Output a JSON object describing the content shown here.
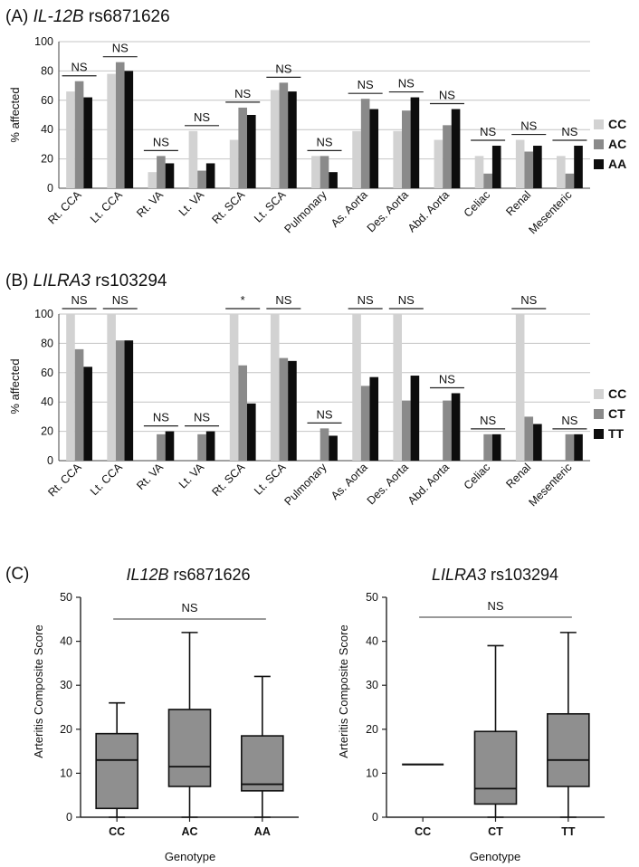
{
  "colors": {
    "g1": "#d2d2d2",
    "g2": "#8a8a8a",
    "g3": "#0d0d0d",
    "box": "#8f8f8f",
    "grid": "#c4c4c4"
  },
  "categories": [
    "Rt. CCA",
    "Lt. CCA",
    "Rt. VA",
    "Lt. VA",
    "Rt. SCA",
    "Lt. SCA",
    "Pulmonary",
    "As. Aorta",
    "Des. Aorta",
    "Abd. Aorta",
    "Celiac",
    "Renal",
    "Mesenteric"
  ],
  "panelA": {
    "label_prefix": "(A) ",
    "gene": "IL-12B",
    "snp": " rs6871626",
    "ylabel": "% affected",
    "legend": [
      "CC",
      "AC",
      "AA"
    ],
    "sig": [
      "NS",
      "NS",
      "NS",
      "NS",
      "NS",
      "NS",
      "NS",
      "NS",
      "NS",
      "NS",
      "NS",
      "NS",
      "NS"
    ]
  },
  "panelB": {
    "label_prefix": "(B) ",
    "gene": "LILRA3",
    "snp": " rs103294",
    "ylabel": "% affected",
    "legend": [
      "CC",
      "CT",
      "TT"
    ],
    "sig": [
      "NS",
      "NS",
      "NS",
      "NS",
      "*",
      "NS",
      "NS",
      "NS",
      "NS",
      "NS",
      "NS",
      "NS",
      "NS"
    ]
  },
  "panelC": {
    "label": "(C)",
    "left": {
      "gene": "IL12B",
      "snp": " rs6871626",
      "sig": "NS"
    },
    "right": {
      "gene": "LILRA3",
      "snp": " rs103294",
      "sig": "NS"
    },
    "ylabel": "Arteritis Composite Score",
    "xlabel": "Genotype"
  },
  "chart_data": [
    {
      "type": "bar",
      "title": "(A) IL-12B rs6871626",
      "ylabel": "% affected",
      "ylim": [
        0,
        100
      ],
      "yticks": [
        0,
        20,
        40,
        60,
        80,
        100
      ],
      "grid": true,
      "categories": [
        "Rt. CCA",
        "Lt. CCA",
        "Rt. VA",
        "Lt. VA",
        "Rt. SCA",
        "Lt. SCA",
        "Pulmonary",
        "As. Aorta",
        "Des. Aorta",
        "Abd. Aorta",
        "Celiac",
        "Renal",
        "Mesenteric"
      ],
      "series": [
        {
          "name": "CC",
          "values": [
            66,
            78,
            11,
            39,
            33,
            67,
            22,
            39,
            39,
            33,
            22,
            33,
            22
          ]
        },
        {
          "name": "AC",
          "values": [
            73,
            86,
            22,
            12,
            55,
            72,
            22,
            61,
            53,
            43,
            10,
            25,
            10
          ]
        },
        {
          "name": "AA",
          "values": [
            62,
            80,
            17,
            17,
            50,
            66,
            11,
            54,
            62,
            54,
            29,
            29,
            29
          ]
        }
      ],
      "legend_position": "right",
      "annotations": [
        "NS",
        "NS",
        "NS",
        "NS",
        "NS",
        "NS",
        "NS",
        "NS",
        "NS",
        "NS",
        "NS",
        "NS",
        "NS"
      ]
    },
    {
      "type": "bar",
      "title": "(B) LILRA3 rs103294",
      "ylabel": "% affected",
      "ylim": [
        0,
        100
      ],
      "yticks": [
        0,
        20,
        40,
        60,
        80,
        100
      ],
      "grid": true,
      "categories": [
        "Rt. CCA",
        "Lt. CCA",
        "Rt. VA",
        "Lt. VA",
        "Rt. SCA",
        "Lt. SCA",
        "Pulmonary",
        "As. Aorta",
        "Des. Aorta",
        "Abd. Aorta",
        "Celiac",
        "Renal",
        "Mesenteric"
      ],
      "series": [
        {
          "name": "CC",
          "values": [
            100,
            100,
            0,
            0,
            100,
            100,
            0,
            100,
            100,
            0,
            0,
            100,
            0
          ]
        },
        {
          "name": "CT",
          "values": [
            76,
            82,
            18,
            18,
            65,
            70,
            22,
            51,
            41,
            41,
            18,
            30,
            18
          ]
        },
        {
          "name": "TT",
          "values": [
            64,
            82,
            20,
            20,
            39,
            68,
            17,
            57,
            58,
            46,
            18,
            25,
            18
          ]
        }
      ],
      "legend_position": "right",
      "annotations": [
        "NS",
        "NS",
        "NS",
        "NS",
        "*",
        "NS",
        "NS",
        "NS",
        "NS",
        "NS",
        "NS",
        "NS",
        "NS"
      ]
    },
    {
      "type": "box",
      "title": "IL12B rs6871626",
      "xlabel": "Genotype",
      "ylabel": "Arteritis Composite Score",
      "ylim": [
        0,
        50
      ],
      "yticks": [
        0,
        10,
        20,
        30,
        40,
        50
      ],
      "categories": [
        "CC",
        "AC",
        "AA"
      ],
      "boxes": [
        {
          "name": "CC",
          "min": 0,
          "q1": 2,
          "median": 13,
          "q3": 19,
          "max": 26
        },
        {
          "name": "AC",
          "min": 0,
          "q1": 7,
          "median": 11.5,
          "q3": 24.5,
          "max": 42
        },
        {
          "name": "AA",
          "min": 0,
          "q1": 6,
          "median": 7.5,
          "q3": 18.5,
          "max": 32
        }
      ],
      "annotation": "NS"
    },
    {
      "type": "box",
      "title": "LILRA3 rs103294",
      "xlabel": "Genotype",
      "ylabel": "Arteritis Composite Score",
      "ylim": [
        0,
        50
      ],
      "yticks": [
        0,
        10,
        20,
        30,
        40,
        50
      ],
      "categories": [
        "CC",
        "CT",
        "TT"
      ],
      "boxes": [
        {
          "name": "CC",
          "min": 12,
          "q1": 12,
          "median": 12,
          "q3": 12,
          "max": 12
        },
        {
          "name": "CT",
          "min": 0,
          "q1": 3,
          "median": 6.5,
          "q3": 19.5,
          "max": 39
        },
        {
          "name": "TT",
          "min": 0,
          "q1": 7,
          "median": 13,
          "q3": 23.5,
          "max": 42
        }
      ],
      "annotation": "NS"
    }
  ]
}
